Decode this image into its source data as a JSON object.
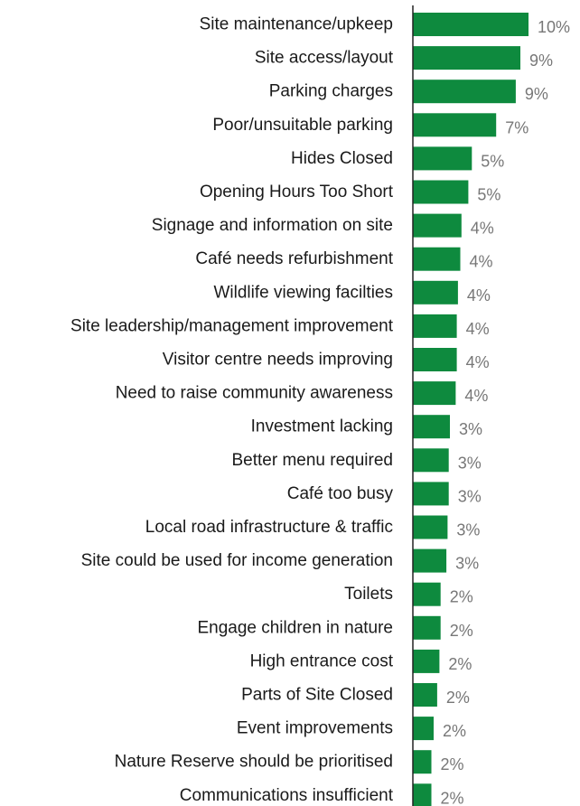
{
  "chart_data": {
    "type": "bar",
    "orientation": "horizontal",
    "categories": [
      "Site maintenance/upkeep",
      "Site access/layout",
      "Parking charges",
      "Poor/unsuitable parking",
      "Hides Closed",
      "Opening Hours Too Short",
      "Signage and information on site",
      "Café needs refurbishment",
      "Wildlife viewing facilties",
      "Site leadership/management improvement",
      "Visitor centre needs improving",
      "Need to raise community awareness",
      "Investment lacking",
      "Better menu required",
      "Café too busy",
      "Local road infrastructure & traffic",
      "Site could be used for income generation",
      "Toilets",
      "Engage children in nature",
      "High entrance cost",
      "Parts of Site Closed",
      "Event improvements",
      "Nature Reserve should be prioritised",
      "Communications insufficient"
    ],
    "values": [
      10.0,
      9.3,
      8.9,
      7.2,
      5.1,
      4.8,
      4.2,
      4.1,
      3.9,
      3.8,
      3.8,
      3.7,
      3.2,
      3.1,
      3.1,
      3.0,
      2.9,
      2.4,
      2.4,
      2.3,
      2.1,
      1.8,
      1.6,
      1.6
    ],
    "value_labels": [
      "10%",
      "9%",
      "9%",
      "7%",
      "5%",
      "5%",
      "4%",
      "4%",
      "4%",
      "4%",
      "4%",
      "4%",
      "3%",
      "3%",
      "3%",
      "3%",
      "3%",
      "2%",
      "2%",
      "2%",
      "2%",
      "2%",
      "2%",
      "2%"
    ],
    "xlim": [
      0,
      10
    ],
    "grid": false,
    "legend": "none",
    "colors": {
      "bar": "#0e8a3e",
      "axis": "#222222",
      "category_text": "#1a1a1a",
      "value_text": "#777777"
    }
  }
}
